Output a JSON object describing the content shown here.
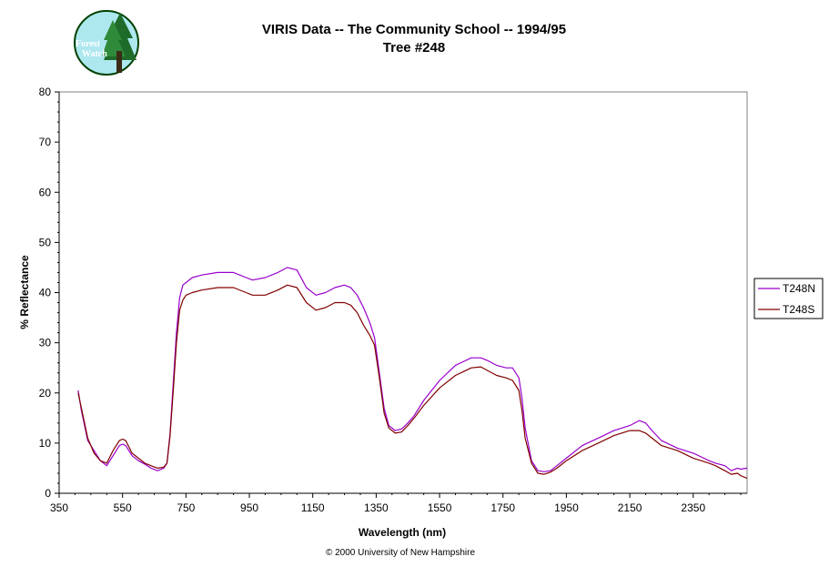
{
  "logo": {
    "line1": "Forest",
    "line2": "Watch",
    "icon": "tree-icon"
  },
  "footer": {
    "copyright": "© 2000 University of New Hampshire"
  },
  "colors": {
    "T248N": "#9900cc",
    "T248S": "#800000",
    "frame": "#808080"
  },
  "chart_data": {
    "type": "line",
    "title": "VIRIS Data -- The Community School -- 1994/95",
    "subtitle": "Tree #248",
    "xlabel": "Wavelength (nm)",
    "ylabel": "% Reflectance",
    "xlim": [
      350,
      2520
    ],
    "ylim": [
      0,
      80
    ],
    "xticks": [
      "350",
      "550",
      "750",
      "950",
      "1150",
      "1350",
      "1550",
      "1750",
      "1950",
      "2150",
      "2350"
    ],
    "yticks": [
      "0",
      "10",
      "20",
      "30",
      "40",
      "50",
      "60",
      "70",
      "80"
    ],
    "grid": false,
    "legend": "right",
    "x": [
      410,
      420,
      440,
      460,
      480,
      500,
      520,
      540,
      550,
      560,
      580,
      600,
      620,
      640,
      660,
      680,
      690,
      700,
      710,
      720,
      730,
      740,
      750,
      770,
      800,
      850,
      900,
      940,
      960,
      1000,
      1040,
      1070,
      1100,
      1130,
      1160,
      1190,
      1220,
      1250,
      1270,
      1290,
      1310,
      1330,
      1345,
      1360,
      1375,
      1390,
      1410,
      1430,
      1450,
      1470,
      1500,
      1550,
      1600,
      1650,
      1680,
      1700,
      1730,
      1760,
      1780,
      1800,
      1810,
      1820,
      1840,
      1860,
      1880,
      1900,
      1920,
      1950,
      2000,
      2050,
      2100,
      2150,
      2180,
      2200,
      2220,
      2250,
      2300,
      2350,
      2400,
      2420,
      2450,
      2470,
      2490,
      2500,
      2520
    ],
    "series": [
      {
        "name": "T248N",
        "values": [
          20.5,
          16.5,
          10.5,
          8.5,
          6.5,
          5.5,
          7.5,
          9.5,
          9.8,
          9.5,
          7.5,
          6.5,
          5.8,
          5.0,
          4.5,
          5.0,
          6.0,
          12.0,
          22.0,
          32.0,
          39.0,
          41.5,
          42.0,
          43.0,
          43.5,
          44.0,
          44.0,
          43.0,
          42.5,
          43.0,
          44.0,
          45.0,
          44.5,
          41.0,
          39.5,
          40.0,
          41.0,
          41.5,
          41.0,
          39.5,
          37.0,
          34.0,
          31.0,
          24.0,
          17.0,
          13.5,
          12.5,
          12.8,
          14.0,
          15.5,
          18.5,
          22.5,
          25.5,
          27.0,
          27.0,
          26.5,
          25.5,
          25.0,
          25.0,
          23.0,
          19.0,
          13.0,
          6.5,
          4.5,
          4.3,
          4.5,
          5.5,
          7.0,
          9.5,
          11.0,
          12.5,
          13.5,
          14.5,
          14.0,
          12.5,
          10.5,
          9.0,
          8.0,
          6.5,
          6.0,
          5.5,
          4.5,
          5.0,
          4.8,
          5.0
        ]
      },
      {
        "name": "T248S",
        "values": [
          20.0,
          17.0,
          11.0,
          8.0,
          6.5,
          6.0,
          8.5,
          10.5,
          10.8,
          10.5,
          8.0,
          7.0,
          6.0,
          5.5,
          5.0,
          5.2,
          6.0,
          11.5,
          20.5,
          30.0,
          36.5,
          38.5,
          39.5,
          40.0,
          40.5,
          41.0,
          41.0,
          40.0,
          39.5,
          39.5,
          40.5,
          41.5,
          41.0,
          38.0,
          36.5,
          37.0,
          38.0,
          38.0,
          37.5,
          36.0,
          33.5,
          31.5,
          29.5,
          23.0,
          16.0,
          13.0,
          12.0,
          12.2,
          13.5,
          15.0,
          17.5,
          21.0,
          23.5,
          25.0,
          25.2,
          24.5,
          23.5,
          23.0,
          22.5,
          20.5,
          16.5,
          11.0,
          6.0,
          4.0,
          3.8,
          4.2,
          5.0,
          6.5,
          8.5,
          10.0,
          11.5,
          12.5,
          12.5,
          12.0,
          11.0,
          9.5,
          8.5,
          7.0,
          6.0,
          5.5,
          4.5,
          3.8,
          4.0,
          3.5,
          3.0
        ]
      }
    ]
  }
}
